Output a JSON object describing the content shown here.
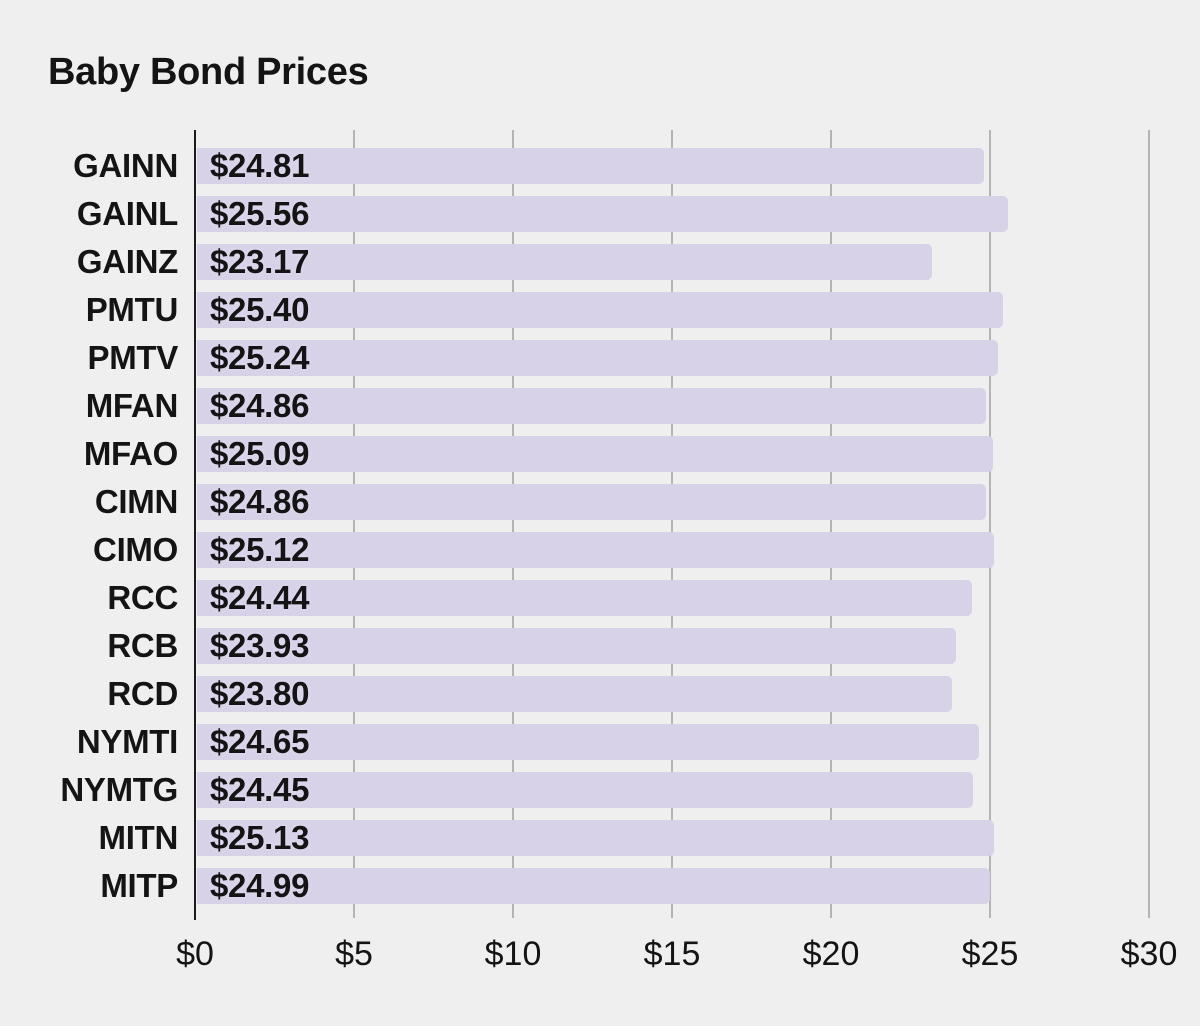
{
  "chart_data": {
    "type": "bar",
    "orientation": "horizontal",
    "title": "Baby Bond Prices",
    "categories": [
      "GAINN",
      "GAINL",
      "GAINZ",
      "PMTU",
      "PMTV",
      "MFAN",
      "MFAO",
      "CIMN",
      "CIMO",
      "RCC",
      "RCB",
      "RCD",
      "NYMTI",
      "NYMTG",
      "MITN",
      "MITP"
    ],
    "values": [
      24.81,
      25.56,
      23.17,
      25.4,
      25.24,
      24.86,
      25.09,
      24.86,
      25.12,
      24.44,
      23.93,
      23.8,
      24.65,
      24.45,
      25.13,
      24.99
    ],
    "value_labels": [
      "$24.81",
      "$25.56",
      "$23.17",
      "$25.40",
      "$25.24",
      "$24.86",
      "$25.09",
      "$24.86",
      "$25.12",
      "$24.44",
      "$23.93",
      "$23.80",
      "$24.65",
      "$24.45",
      "$25.13",
      "$24.99"
    ],
    "x_tick_labels": [
      "$0",
      "$5",
      "$10",
      "$15",
      "$20",
      "$25",
      "$30"
    ],
    "x_tick_values": [
      0,
      5,
      10,
      15,
      20,
      25,
      30
    ],
    "xlim": [
      0,
      30
    ],
    "grid": true,
    "legend": "none",
    "colors": {
      "bar": "#d8d2e8",
      "value_halo": "#ded8ee",
      "background": "#efefef",
      "gridline": "#b4b4b4",
      "axis_line": "#1b1b1b",
      "text": "#141414"
    }
  }
}
